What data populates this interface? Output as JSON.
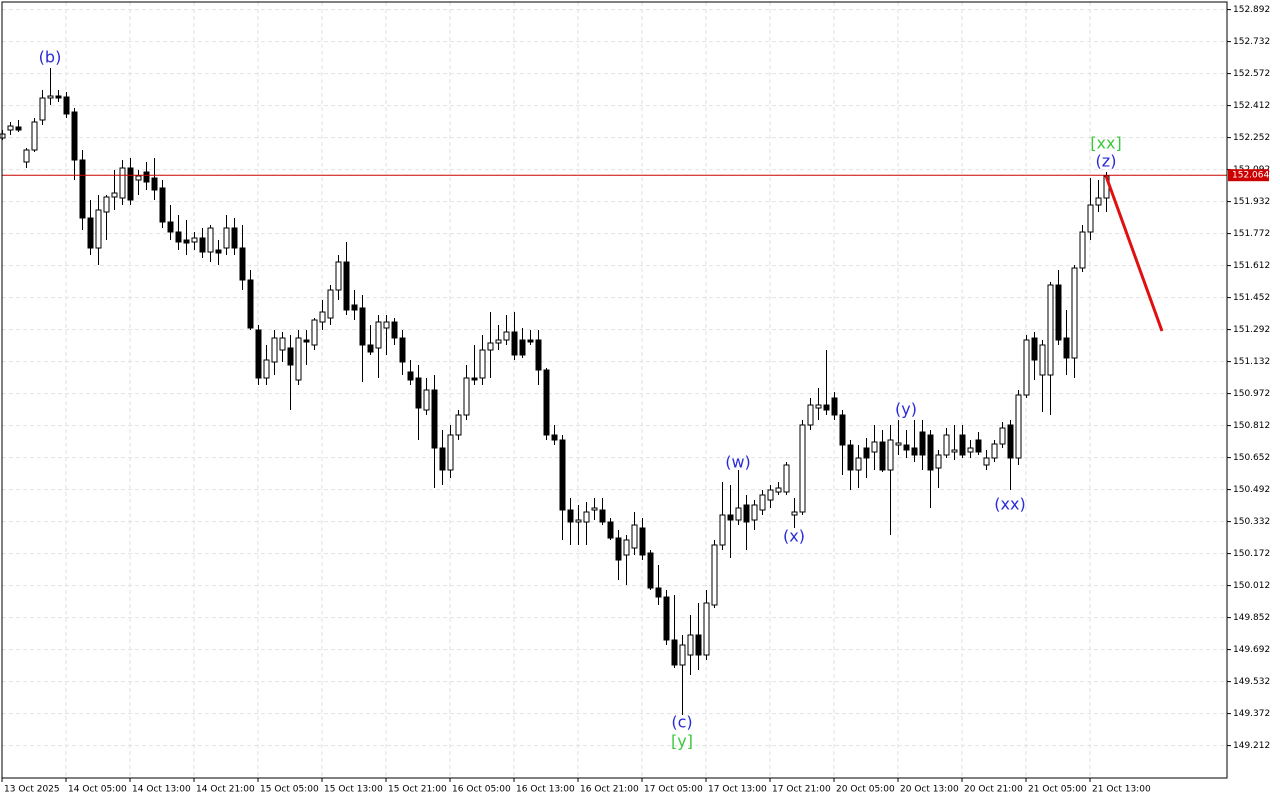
{
  "chart_data": {
    "type": "candlestick",
    "xlim": [
      0,
      153.125
    ],
    "ylim": [
      149.05,
      152.93
    ],
    "grid": true,
    "up_color": "#ffffff",
    "down_color": "#000000",
    "xticks": [
      {
        "value": 0,
        "label": "13 Oct 2025"
      },
      {
        "value": 8,
        "label": "14 Oct 05:00"
      },
      {
        "value": 16,
        "label": "14 Oct 13:00"
      },
      {
        "value": 24,
        "label": "14 Oct 21:00"
      },
      {
        "value": 32,
        "label": "15 Oct 05:00"
      },
      {
        "value": 40,
        "label": "15 Oct 13:00"
      },
      {
        "value": 48,
        "label": "15 Oct 21:00"
      },
      {
        "value": 56,
        "label": "16 Oct 05:00"
      },
      {
        "value": 64,
        "label": "16 Oct 13:00"
      },
      {
        "value": 72,
        "label": "16 Oct 21:00"
      },
      {
        "value": 80,
        "label": "17 Oct 05:00"
      },
      {
        "value": 88,
        "label": "17 Oct 13:00"
      },
      {
        "value": 96,
        "label": "17 Oct 21:00"
      },
      {
        "value": 104,
        "label": "20 Oct 05:00"
      },
      {
        "value": 112,
        "label": "20 Oct 13:00"
      },
      {
        "value": 120,
        "label": "20 Oct 21:00"
      },
      {
        "value": 128,
        "label": "21 Oct 05:00"
      },
      {
        "value": 136,
        "label": "21 Oct 13:00"
      }
    ],
    "yticks": [
      152.892,
      152.732,
      152.572,
      152.412,
      152.252,
      152.092,
      151.932,
      151.772,
      151.612,
      151.452,
      151.292,
      151.132,
      150.972,
      150.812,
      150.652,
      150.492,
      150.332,
      150.172,
      150.012,
      149.852,
      149.692,
      149.532,
      149.372,
      149.212
    ],
    "current_price_line": {
      "value": 152.064,
      "color": "#cc0000"
    },
    "annotations": [
      {
        "text": "(b)",
        "color": "#2a2ad8"
      },
      {
        "text": "[xx]",
        "color": "#3cc83c"
      },
      {
        "text": "(z)",
        "color": "#2a2ad8"
      },
      {
        "text": "(w)",
        "color": "#2a2ad8"
      },
      {
        "text": "(x)",
        "color": "#2a2ad8"
      },
      {
        "text": "(y)",
        "color": "#2a2ad8"
      },
      {
        "text": "(xx)",
        "color": "#2a2ad8"
      },
      {
        "text": "(c)",
        "color": "#2a2ad8"
      },
      {
        "text": "[y]",
        "color": "#3cc83c"
      }
    ],
    "open": [
      152.25,
      152.29,
      152.305,
      152.13,
      152.19,
      152.34,
      152.45,
      152.46,
      152.455,
      152.38,
      152.14,
      151.85,
      151.7,
      151.88,
      151.955,
      151.95,
      152.1,
      152.04,
      152.08,
      152.05,
      152.0,
      151.83,
      151.78,
      151.74,
      151.73,
      151.75,
      151.68,
      151.69,
      151.7,
      151.8,
      151.7,
      151.54,
      151.29,
      151.05,
      151.13,
      151.19,
      151.2,
      151.04,
      151.24,
      151.215,
      151.33,
      151.35,
      151.49,
      151.63,
      151.415,
      151.4,
      151.215,
      151.2,
      151.3,
      151.33,
      151.25,
      151.08,
      151.05,
      150.89,
      150.99,
      150.7,
      150.59,
      150.765,
      150.865,
      151.05,
      151.05,
      151.19,
      151.225,
      151.24,
      151.28,
      151.24,
      151.24,
      151.24,
      151.09,
      150.765,
      150.74,
      150.39,
      150.33,
      150.33,
      150.39,
      150.39,
      150.33,
      150.25,
      150.165,
      150.2,
      150.3,
      150.175,
      150.0,
      149.955,
      149.74,
      149.615,
      149.665,
      149.765,
      149.665,
      149.915,
      150.215,
      150.365,
      150.34,
      150.415,
      150.34,
      150.39,
      150.44,
      150.48,
      150.48,
      150.365,
      150.38,
      150.815,
      150.9,
      150.915,
      150.95,
      150.865,
      150.715,
      150.59,
      150.7,
      150.68,
      150.73,
      150.59,
      150.715,
      150.715,
      150.7,
      150.78,
      150.765,
      150.6,
      150.665,
      150.68,
      150.765,
      150.68,
      150.74,
      150.615,
      150.65,
      150.72,
      150.815,
      150.65,
      150.965,
      151.25,
      151.065,
      151.065,
      151.515,
      151.25,
      151.15,
      151.6,
      151.78,
      151.915,
      151.95
    ],
    "high": [
      152.29,
      152.33,
      152.34,
      152.2,
      152.35,
      152.49,
      152.6,
      152.49,
      152.48,
      152.4,
      152.19,
      151.94,
      151.965,
      151.965,
      152.09,
      152.14,
      152.15,
      152.09,
      152.13,
      152.15,
      152.04,
      151.915,
      151.865,
      151.84,
      151.78,
      151.8,
      151.815,
      151.74,
      151.865,
      151.85,
      151.815,
      151.59,
      151.315,
      151.215,
      151.29,
      151.28,
      151.265,
      151.29,
      151.29,
      151.35,
      151.44,
      151.515,
      151.665,
      151.73,
      151.49,
      151.465,
      151.315,
      151.365,
      151.365,
      151.35,
      151.29,
      151.14,
      151.115,
      151.05,
      151.065,
      150.79,
      150.815,
      150.89,
      151.115,
      151.215,
      151.265,
      151.38,
      151.315,
      151.365,
      151.38,
      151.3,
      151.29,
      151.29,
      151.1,
      150.815,
      150.765,
      150.45,
      150.415,
      150.43,
      150.45,
      150.45,
      150.35,
      150.29,
      150.265,
      150.38,
      150.35,
      150.19,
      150.115,
      149.99,
      149.965,
      149.765,
      149.865,
      149.925,
      149.99,
      150.24,
      150.53,
      150.515,
      150.59,
      150.465,
      150.44,
      150.49,
      150.515,
      150.53,
      150.63,
      150.45,
      150.84,
      150.95,
      151.0,
      151.19,
      150.98,
      150.89,
      150.74,
      150.715,
      150.75,
      150.815,
      150.79,
      150.815,
      150.84,
      150.79,
      150.84,
      150.84,
      150.79,
      150.69,
      150.8,
      150.815,
      150.815,
      150.74,
      150.78,
      150.69,
      150.74,
      150.83,
      150.84,
      150.99,
      151.265,
      151.28,
      151.24,
      151.53,
      151.59,
      151.39,
      151.615,
      151.815,
      152.05,
      152.04,
      152.08
    ],
    "low": [
      152.24,
      152.265,
      152.28,
      152.1,
      152.18,
      152.315,
      152.415,
      152.43,
      152.35,
      152.04,
      151.79,
      151.665,
      151.615,
      151.74,
      151.89,
      151.915,
      151.915,
      151.965,
      151.99,
      151.94,
      151.8,
      151.74,
      151.69,
      151.665,
      151.69,
      151.65,
      151.63,
      151.615,
      151.665,
      151.665,
      151.49,
      151.29,
      151.015,
      151.015,
      151.065,
      151.13,
      150.89,
      151.015,
      151.115,
      151.19,
      151.29,
      151.315,
      151.44,
      151.365,
      151.34,
      151.03,
      151.165,
      151.05,
      151.165,
      151.215,
      151.065,
      151.015,
      150.74,
      150.865,
      150.5,
      150.515,
      150.55,
      150.74,
      150.84,
      151.015,
      151.015,
      151.05,
      151.19,
      151.215,
      151.14,
      151.15,
      151.215,
      151.015,
      150.74,
      150.715,
      150.24,
      150.215,
      150.215,
      150.215,
      150.34,
      150.315,
      150.24,
      150.04,
      150.015,
      150.165,
      150.14,
      149.99,
      149.915,
      149.715,
      149.6,
      149.365,
      149.565,
      149.59,
      149.64,
      149.9,
      150.19,
      150.15,
      150.315,
      150.19,
      150.29,
      150.365,
      150.4,
      150.465,
      150.465,
      150.3,
      150.365,
      150.79,
      150.84,
      150.865,
      150.84,
      150.565,
      150.49,
      150.5,
      150.55,
      150.59,
      150.58,
      150.265,
      150.665,
      150.65,
      150.63,
      150.59,
      150.4,
      150.5,
      150.65,
      150.64,
      150.65,
      150.65,
      150.665,
      150.59,
      150.63,
      150.7,
      150.49,
      150.615,
      150.95,
      151.04,
      150.88,
      150.865,
      151.215,
      151.065,
      151.05,
      151.58,
      151.74,
      151.88,
      151.88
    ],
    "close": [
      152.27,
      152.31,
      152.29,
      152.19,
      152.33,
      152.45,
      152.46,
      152.45,
      152.37,
      152.14,
      151.85,
      151.7,
      151.89,
      151.955,
      151.975,
      152.1,
      151.94,
      152.06,
      152.03,
      151.99,
      151.83,
      151.78,
      151.73,
      151.725,
      151.75,
      151.68,
      151.8,
      151.675,
      151.8,
      151.7,
      151.54,
      151.3,
      151.05,
      151.14,
      151.25,
      151.25,
      151.115,
      151.25,
      151.23,
      151.34,
      151.38,
      151.49,
      151.63,
      151.39,
      151.39,
      151.215,
      151.18,
      151.33,
      151.33,
      151.25,
      151.13,
      151.04,
      150.9,
      150.99,
      150.7,
      150.59,
      150.765,
      150.865,
      151.05,
      151.04,
      151.19,
      151.225,
      151.24,
      151.28,
      151.165,
      151.165,
      151.23,
      151.09,
      150.765,
      150.74,
      150.39,
      150.33,
      150.34,
      150.38,
      150.4,
      150.33,
      150.25,
      150.14,
      150.24,
      150.315,
      150.165,
      150.0,
      149.955,
      149.74,
      149.615,
      149.715,
      149.765,
      149.665,
      149.925,
      150.215,
      150.365,
      150.34,
      150.4,
      150.33,
      150.415,
      150.465,
      150.49,
      150.5,
      150.615,
      150.38,
      150.815,
      150.915,
      150.915,
      150.89,
      150.865,
      150.715,
      150.59,
      150.65,
      150.65,
      150.73,
      150.59,
      150.74,
      150.725,
      150.69,
      150.665,
      150.665,
      150.59,
      150.665,
      150.765,
      150.69,
      150.665,
      150.7,
      150.68,
      150.65,
      150.72,
      150.8,
      150.65,
      150.965,
      151.24,
      151.14,
      151.215,
      151.515,
      151.24,
      151.15,
      151.6,
      151.78,
      151.915,
      151.95,
      152.06
    ]
  }
}
